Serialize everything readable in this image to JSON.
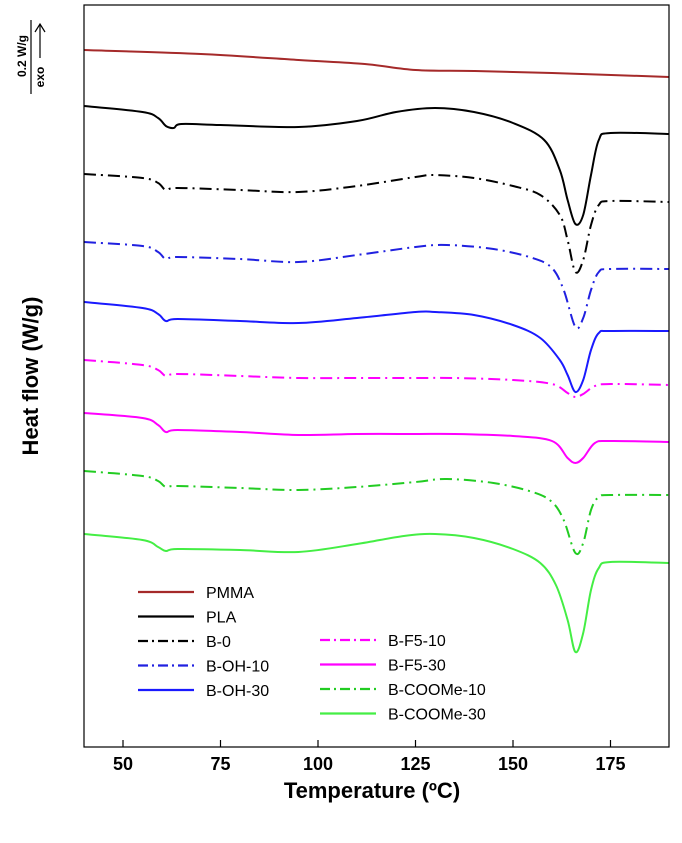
{
  "chart_data": {
    "type": "line",
    "title": "",
    "xlabel": "Temperature (ºC)",
    "ylabel": "Heat flow (W/g)",
    "xlim": [
      40,
      190
    ],
    "xticks": [
      50,
      75,
      100,
      125,
      150,
      175
    ],
    "x_tick_labels": [
      "50",
      "75",
      "100",
      "125",
      "150",
      "175"
    ],
    "y_ticks_shown": false,
    "grid": false,
    "legend_position": "bottom-left",
    "scale_bar": {
      "value_label": "0.2 W/g",
      "direction_label": "exo"
    },
    "series": [
      {
        "name": "PMMA",
        "color": "#a52a2a",
        "dash": "solid",
        "points": [
          [
            40,
            50
          ],
          [
            70,
            54
          ],
          [
            95,
            60
          ],
          [
            112,
            64
          ],
          [
            125,
            70
          ],
          [
            140,
            71
          ],
          [
            160,
            73
          ],
          [
            190,
            77
          ]
        ]
      },
      {
        "name": "PLA",
        "color": "#000000",
        "dash": "solid",
        "points": [
          [
            40,
            106
          ],
          [
            55,
            112
          ],
          [
            59,
            118
          ],
          [
            61,
            126
          ],
          [
            63,
            128
          ],
          [
            65,
            124
          ],
          [
            75,
            125
          ],
          [
            95,
            127
          ],
          [
            110,
            121
          ],
          [
            120,
            112
          ],
          [
            130,
            108
          ],
          [
            140,
            112
          ],
          [
            150,
            123
          ],
          [
            158,
            140
          ],
          [
            162,
            170
          ],
          [
            164,
            200
          ],
          [
            166,
            224
          ],
          [
            168,
            215
          ],
          [
            170,
            175
          ],
          [
            172,
            140
          ],
          [
            175,
            133
          ],
          [
            190,
            134
          ]
        ]
      },
      {
        "name": "B-0",
        "color": "#000000",
        "dash": "dashdot",
        "points": [
          [
            40,
            174
          ],
          [
            55,
            178
          ],
          [
            59,
            183
          ],
          [
            61,
            190
          ],
          [
            64,
            188
          ],
          [
            80,
            190
          ],
          [
            95,
            192
          ],
          [
            110,
            186
          ],
          [
            125,
            177
          ],
          [
            130,
            175
          ],
          [
            140,
            178
          ],
          [
            150,
            186
          ],
          [
            157,
            195
          ],
          [
            162,
            215
          ],
          [
            164,
            240
          ],
          [
            166,
            272
          ],
          [
            168,
            260
          ],
          [
            170,
            225
          ],
          [
            172,
            205
          ],
          [
            175,
            201
          ],
          [
            190,
            202
          ]
        ]
      },
      {
        "name": "B-OH-10",
        "color": "#2020e0",
        "dash": "dashdot",
        "points": [
          [
            40,
            242
          ],
          [
            55,
            246
          ],
          [
            59,
            252
          ],
          [
            61,
            259
          ],
          [
            64,
            257
          ],
          [
            80,
            259
          ],
          [
            95,
            262
          ],
          [
            110,
            255
          ],
          [
            125,
            247
          ],
          [
            133,
            245
          ],
          [
            145,
            249
          ],
          [
            155,
            258
          ],
          [
            160,
            268
          ],
          [
            163,
            290
          ],
          [
            166,
            327
          ],
          [
            168,
            318
          ],
          [
            170,
            290
          ],
          [
            172,
            272
          ],
          [
            175,
            269
          ],
          [
            190,
            269
          ]
        ]
      },
      {
        "name": "B-OH-30",
        "color": "#1a1aff",
        "dash": "solid",
        "points": [
          [
            40,
            302
          ],
          [
            55,
            308
          ],
          [
            59,
            314
          ],
          [
            61,
            321
          ],
          [
            64,
            319
          ],
          [
            80,
            321
          ],
          [
            95,
            323
          ],
          [
            110,
            318
          ],
          [
            125,
            312
          ],
          [
            130,
            312
          ],
          [
            140,
            315
          ],
          [
            150,
            325
          ],
          [
            157,
            338
          ],
          [
            162,
            360
          ],
          [
            164,
            375
          ],
          [
            166,
            392
          ],
          [
            168,
            380
          ],
          [
            170,
            350
          ],
          [
            172,
            333
          ],
          [
            175,
            331
          ],
          [
            190,
            331
          ]
        ]
      },
      {
        "name": "B-F5-10",
        "color": "#ff00ff",
        "dash": "dashdot",
        "points": [
          [
            40,
            360
          ],
          [
            55,
            365
          ],
          [
            59,
            370
          ],
          [
            61,
            376
          ],
          [
            64,
            374
          ],
          [
            80,
            376
          ],
          [
            95,
            378
          ],
          [
            110,
            378
          ],
          [
            125,
            378
          ],
          [
            135,
            378
          ],
          [
            150,
            380
          ],
          [
            160,
            384
          ],
          [
            164,
            393
          ],
          [
            166,
            397
          ],
          [
            168,
            394
          ],
          [
            171,
            386
          ],
          [
            175,
            384
          ],
          [
            190,
            385
          ]
        ]
      },
      {
        "name": "B-F5-30",
        "color": "#ff00ff",
        "dash": "solid",
        "points": [
          [
            40,
            413
          ],
          [
            55,
            418
          ],
          [
            59,
            425
          ],
          [
            61,
            432
          ],
          [
            64,
            430
          ],
          [
            80,
            432
          ],
          [
            95,
            435
          ],
          [
            110,
            434
          ],
          [
            125,
            434
          ],
          [
            135,
            434
          ],
          [
            150,
            436
          ],
          [
            160,
            441
          ],
          [
            164,
            458
          ],
          [
            166,
            463
          ],
          [
            168,
            458
          ],
          [
            171,
            443
          ],
          [
            175,
            441
          ],
          [
            190,
            442
          ]
        ]
      },
      {
        "name": "B-COOMe-10",
        "color": "#22cc22",
        "dash": "dashdot",
        "points": [
          [
            40,
            471
          ],
          [
            55,
            476
          ],
          [
            59,
            481
          ],
          [
            61,
            487
          ],
          [
            64,
            486
          ],
          [
            80,
            488
          ],
          [
            95,
            490
          ],
          [
            110,
            487
          ],
          [
            125,
            482
          ],
          [
            133,
            479
          ],
          [
            145,
            483
          ],
          [
            155,
            492
          ],
          [
            160,
            502
          ],
          [
            163,
            520
          ],
          [
            166,
            553
          ],
          [
            168,
            543
          ],
          [
            170,
            510
          ],
          [
            172,
            497
          ],
          [
            175,
            495
          ],
          [
            190,
            495
          ]
        ]
      },
      {
        "name": "B-COOMe-30",
        "color": "#44ee44",
        "dash": "solid",
        "points": [
          [
            40,
            534
          ],
          [
            55,
            540
          ],
          [
            59,
            547
          ],
          [
            61,
            551
          ],
          [
            64,
            549
          ],
          [
            80,
            550
          ],
          [
            95,
            552
          ],
          [
            110,
            544
          ],
          [
            122,
            536
          ],
          [
            130,
            534
          ],
          [
            140,
            538
          ],
          [
            150,
            549
          ],
          [
            157,
            563
          ],
          [
            161,
            585
          ],
          [
            164,
            620
          ],
          [
            166,
            652
          ],
          [
            168,
            633
          ],
          [
            170,
            590
          ],
          [
            172,
            568
          ],
          [
            175,
            562
          ],
          [
            190,
            563
          ]
        ]
      }
    ]
  }
}
